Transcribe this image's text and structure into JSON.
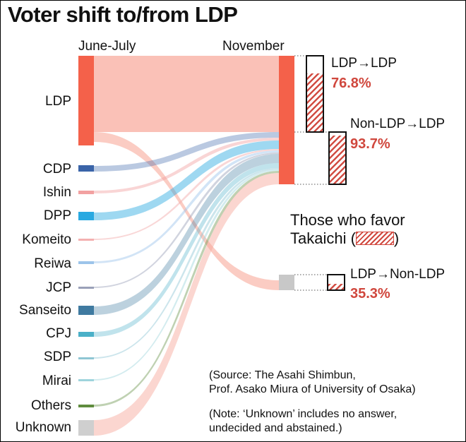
{
  "title": "Voter shift to/from LDP",
  "columns": {
    "left": "June-July",
    "right": "November"
  },
  "parties": [
    "LDP",
    "CDP",
    "Ishin",
    "DPP",
    "Komeito",
    "Reiwa",
    "JCP",
    "Sanseito",
    "CPJ",
    "SDP",
    "Mirai",
    "Others",
    "Unknown"
  ],
  "boxes": [
    {
      "label": "LDP→LDP",
      "value": "76.8%",
      "fraction": 0.768
    },
    {
      "label": "Non-LDP→LDP",
      "value": "93.7%",
      "fraction": 0.937
    },
    {
      "label": "LDP→Non-LDP",
      "value": "35.3%",
      "fraction": 0.353
    }
  ],
  "legend": {
    "line1": "Those who favor",
    "line2": "Takaichi (",
    "line2_end": ")"
  },
  "source": {
    "line1": "(Source: The Asahi Shimbun,",
    "line2": "Prof. Asako Miura of University of Osaka)"
  },
  "note": {
    "line1": "(Note: ‘Unknown’ includes no answer,",
    "line2": "undecided and abstained.)"
  },
  "colors": {
    "ldp": "#f4614a",
    "ldp_flow": "#f9b6aa",
    "cdp": "#3a64a8",
    "ishin": "#f2a1a1",
    "dpp": "#29a9e1",
    "komeito": "#f4b0b0",
    "reiwa": "#9cc4ea",
    "jcp": "#9aa0b8",
    "sanseito": "#3f7aa0",
    "cpj": "#4ab0c8",
    "sdp": "#8fc6d4",
    "mirai": "#9ed4dc",
    "others": "#5f8c3e",
    "unknown": "#cfcfcf",
    "accent": "#d0473d"
  }
}
